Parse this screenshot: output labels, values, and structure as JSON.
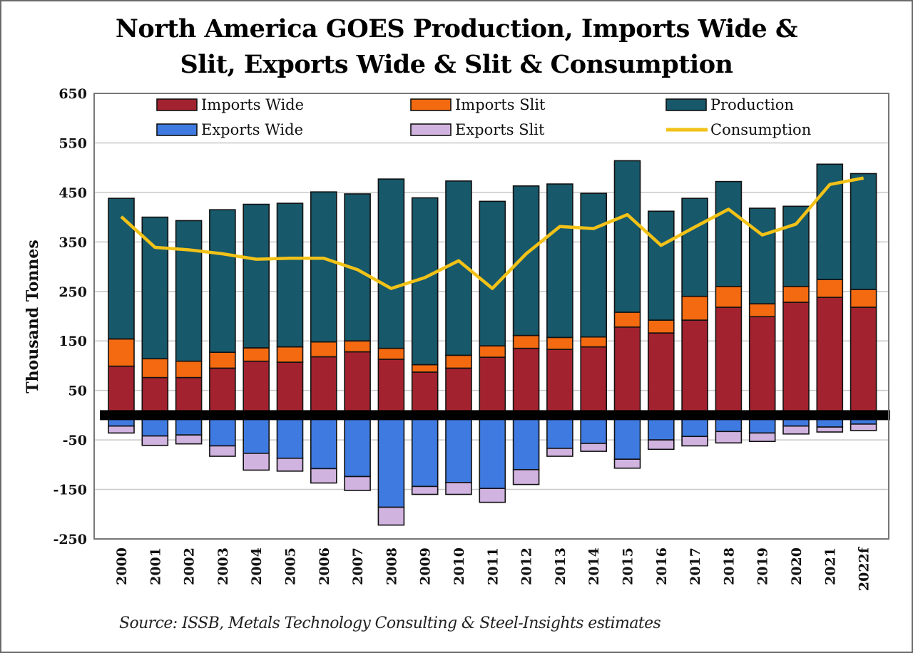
{
  "chart_data": {
    "type": "bar",
    "title_line1": "North America GOES Production, Imports Wide &",
    "title_line2": "Slit, Exports Wide & Slit & Consumption",
    "source": "Source: ISSB, Metals Technology Consulting & Steel-Insights estimates",
    "ylabel": "Thousand Tonnes",
    "xlabel": "",
    "ylim": [
      -250,
      650
    ],
    "yticks": [
      "650",
      "550",
      "450",
      "350",
      "250",
      "150",
      "50",
      "-50",
      "-150",
      "-250"
    ],
    "grid": true,
    "legend_placement": "top, inside plot",
    "categories": [
      "2000",
      "2001",
      "2002",
      "2003",
      "2004",
      "2005",
      "2006",
      "2007",
      "2008",
      "2009",
      "2010",
      "2011",
      "2012",
      "2013",
      "2014",
      "2015",
      "2016",
      "2017",
      "2018",
      "2019",
      "2020",
      "2021",
      "2022f"
    ],
    "series": [
      {
        "name": "Imports Wide",
        "kind": "stack-pos",
        "color": "#a2232f",
        "values": [
          99,
          76,
          76,
          95,
          109,
          107,
          118,
          128,
          113,
          87,
          95,
          117,
          135,
          133,
          138,
          178,
          166,
          192,
          218,
          199,
          228,
          238,
          218
        ]
      },
      {
        "name": "Imports Slit",
        "kind": "stack-pos",
        "color": "#f46a10",
        "values": [
          55,
          38,
          33,
          32,
          27,
          31,
          30,
          22,
          22,
          15,
          26,
          23,
          26,
          24,
          20,
          30,
          26,
          48,
          42,
          26,
          32,
          36,
          36
        ]
      },
      {
        "name": "Production",
        "kind": "stack-pos",
        "color": "#17586a",
        "values": [
          284,
          286,
          284,
          288,
          290,
          290,
          303,
          297,
          342,
          337,
          352,
          292,
          302,
          310,
          290,
          306,
          220,
          198,
          212,
          193,
          162,
          233,
          234
        ]
      },
      {
        "name": "Exports Wide",
        "kind": "stack-neg",
        "color": "#3f7ae0",
        "values": [
          -22,
          -42,
          -40,
          -62,
          -77,
          -87,
          -108,
          -124,
          -186,
          -144,
          -136,
          -148,
          -110,
          -67,
          -57,
          -89,
          -50,
          -43,
          -33,
          -36,
          -22,
          -24,
          -18
        ]
      },
      {
        "name": "Exports Slit",
        "kind": "stack-neg",
        "color": "#d1b3e0",
        "values": [
          -14,
          -19,
          -18,
          -21,
          -34,
          -26,
          -29,
          -28,
          -36,
          -16,
          -24,
          -28,
          -30,
          -16,
          -16,
          -18,
          -19,
          -19,
          -23,
          -17,
          -16,
          -10,
          -13
        ]
      },
      {
        "name": "Consumption",
        "kind": "line",
        "color": "#f2c218",
        "values": [
          401,
          339,
          334,
          326,
          315,
          317,
          317,
          294,
          256,
          278,
          312,
          256,
          326,
          381,
          377,
          405,
          343,
          380,
          416,
          364,
          386,
          466,
          479
        ]
      }
    ]
  }
}
